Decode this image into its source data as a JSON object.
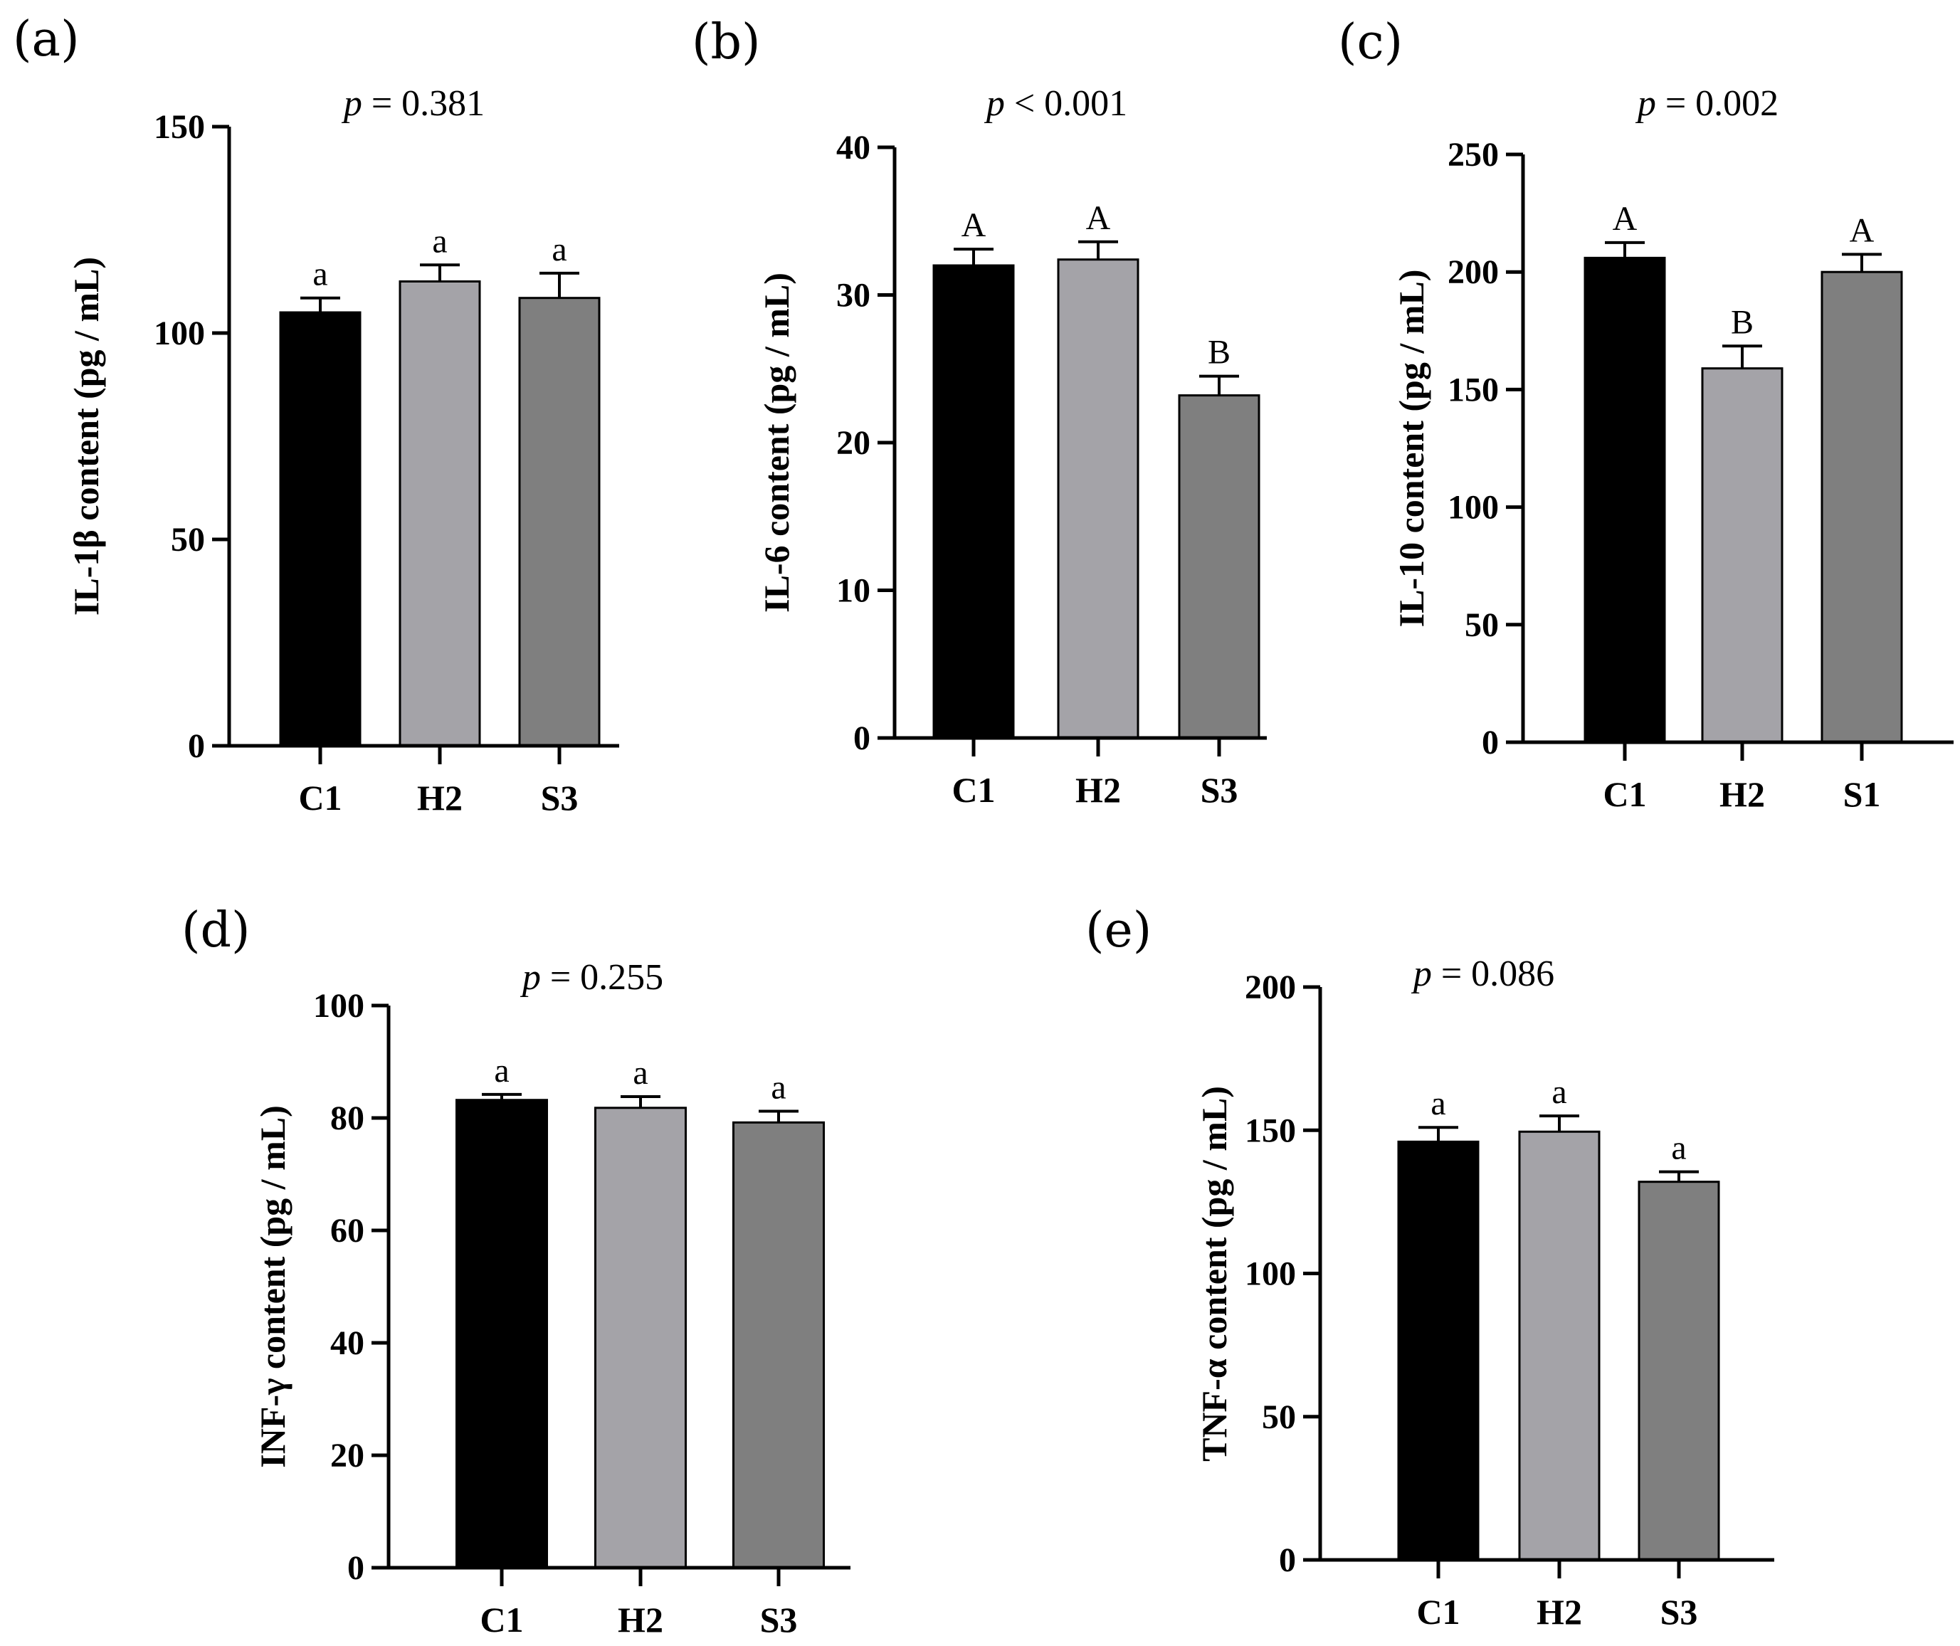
{
  "chart_data": [
    {
      "panel": "(a)",
      "type": "bar",
      "p_prefix": "p",
      "p_rest": " = 0.381",
      "ylabel": "IL-1β content (pg / mL)",
      "ylim": [
        0,
        150
      ],
      "yticks": [
        "0",
        "50",
        "100",
        "150"
      ],
      "categories": [
        "C1",
        "H2",
        "S3"
      ],
      "values": [
        105,
        112.5,
        108.5
      ],
      "errors": [
        3.5,
        4,
        6
      ],
      "significance": [
        "a",
        "a",
        "a"
      ],
      "colors": [
        "#000000",
        "#a4a3a8",
        "#7f7f7f"
      ]
    },
    {
      "panel": "(b)",
      "type": "bar",
      "p_prefix": "p",
      "p_rest": " < 0.001",
      "ylabel": "IL-6 content (pg / mL)",
      "ylim": [
        0,
        40
      ],
      "yticks": [
        "0",
        "10",
        "20",
        "30",
        "40"
      ],
      "categories": [
        "C1",
        "H2",
        "S3"
      ],
      "values": [
        32,
        32.4,
        23.2
      ],
      "errors": [
        1.1,
        1.2,
        1.3
      ],
      "significance": [
        "A",
        "A",
        "B"
      ],
      "colors": [
        "#000000",
        "#a4a3a8",
        "#7f7f7f"
      ]
    },
    {
      "panel": "(c)",
      "type": "bar",
      "p_prefix": "p",
      "p_rest": " = 0.002",
      "ylabel": "IL-10 content (pg / mL)",
      "ylim": [
        0,
        250
      ],
      "yticks": [
        "0",
        "50",
        "100",
        "150",
        "200",
        "250"
      ],
      "categories": [
        "C1",
        "H2",
        "S1"
      ],
      "values": [
        206,
        159,
        200
      ],
      "errors": [
        6.5,
        9.5,
        7.5
      ],
      "significance": [
        "A",
        "B",
        "A"
      ],
      "colors": [
        "#000000",
        "#a4a3a8",
        "#7f7f7f"
      ]
    },
    {
      "panel": "(d)",
      "type": "bar",
      "p_prefix": "p",
      "p_rest": " = 0.255",
      "ylabel": "INF-γ content (pg / mL)",
      "ylim": [
        0,
        100
      ],
      "yticks": [
        "0",
        "20",
        "40",
        "60",
        "80",
        "100"
      ],
      "categories": [
        "C1",
        "H2",
        "S3"
      ],
      "values": [
        83.2,
        81.8,
        79.2
      ],
      "errors": [
        1,
        2,
        2
      ],
      "significance": [
        "a",
        "a",
        "a"
      ],
      "colors": [
        "#000000",
        "#a4a3a8",
        "#7f7f7f"
      ]
    },
    {
      "panel": "(e)",
      "type": "bar",
      "p_prefix": "p",
      "p_rest": " = 0.086",
      "ylabel": "TNF-α content (pg / mL)",
      "ylim": [
        0,
        200
      ],
      "yticks": [
        "0",
        "50",
        "100",
        "150",
        "200"
      ],
      "categories": [
        "C1",
        "H2",
        "S3"
      ],
      "values": [
        146,
        149.5,
        132
      ],
      "errors": [
        5,
        5.5,
        3.5
      ],
      "significance": [
        "a",
        "a",
        "a"
      ],
      "colors": [
        "#000000",
        "#a4a3a8",
        "#7f7f7f"
      ]
    }
  ]
}
